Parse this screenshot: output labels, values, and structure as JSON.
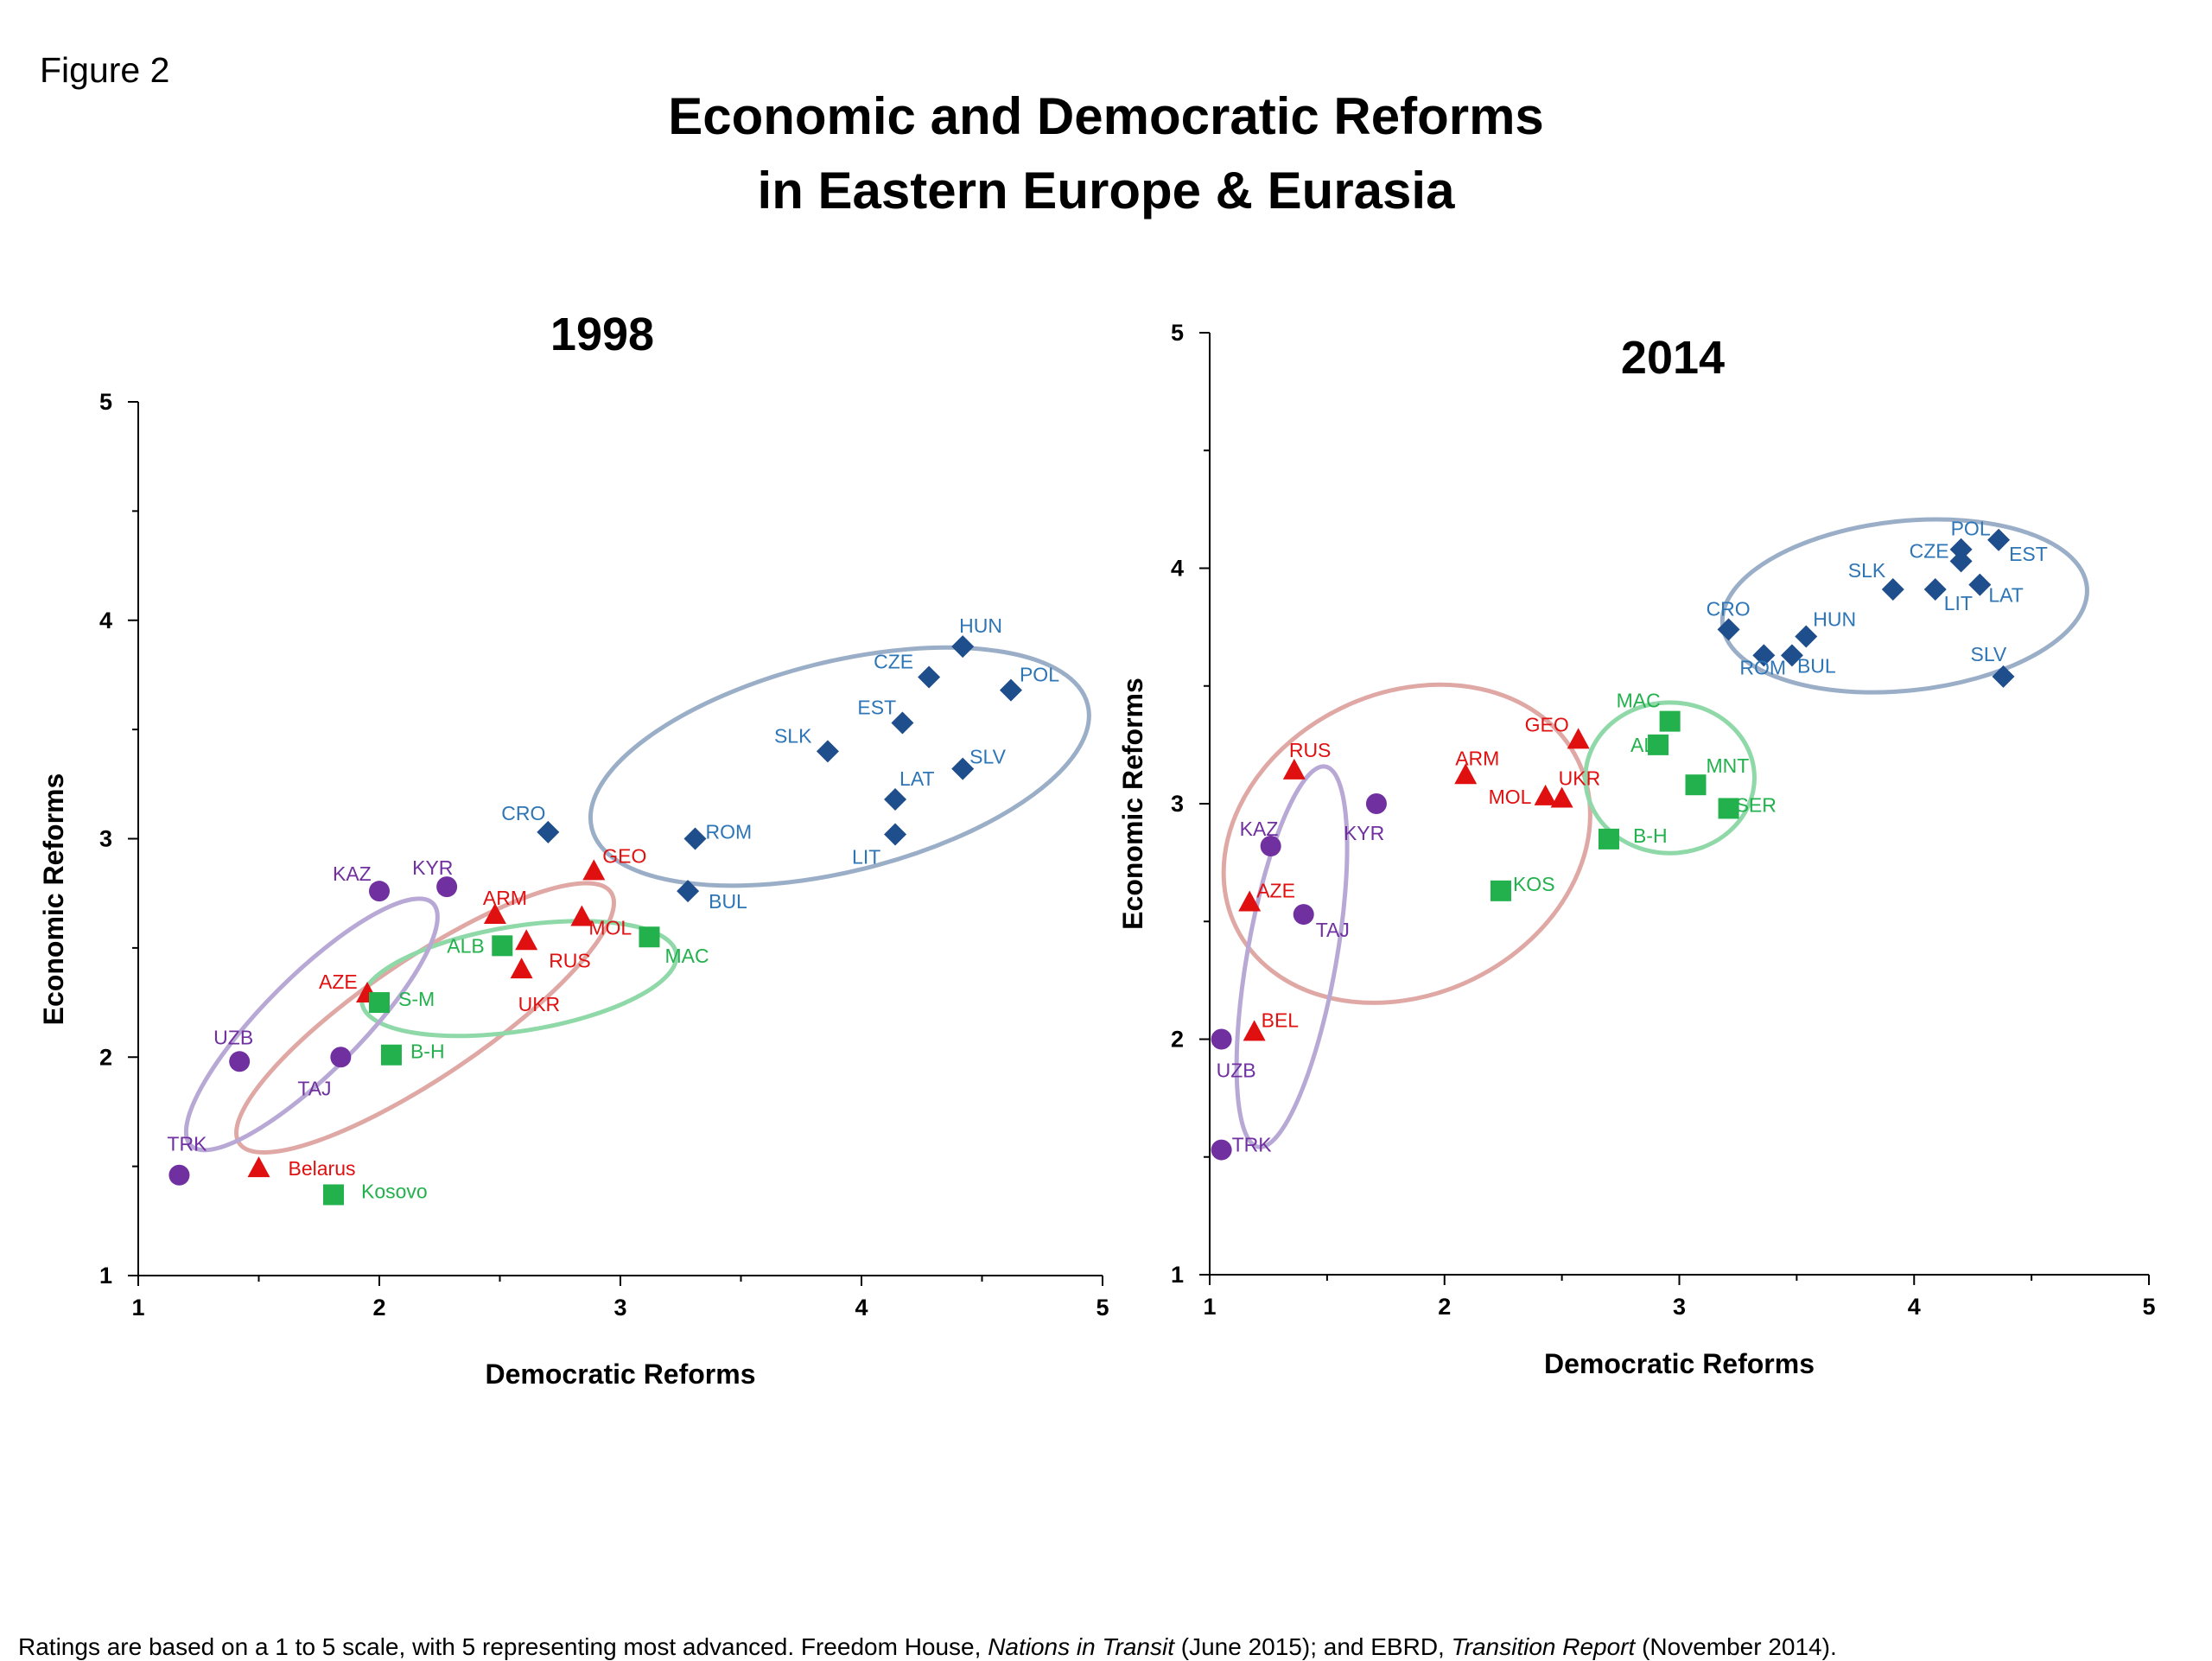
{
  "figure_label": "Figure 2",
  "title_line1": "Economic and Democratic Reforms",
  "title_line2": "in Eastern Europe & Eurasia",
  "footnote": {
    "part1": "Ratings are based on a 1 to 5 scale, with 5 representing most advanced.  Freedom House, ",
    "source1": "Nations in Transit",
    "part2": " (June 2015); and EBRD, ",
    "source2": "Transition Report",
    "part3": " (November 2014)."
  },
  "colors": {
    "blue_group": "#1f4e8c",
    "blue_label": "#2e75b6",
    "red_group": "#e01010",
    "green_group": "#22b14c",
    "purple_group": "#7030a0",
    "ellipse_blue": "#9aaec8",
    "ellipse_red": "#e0a8a4",
    "ellipse_green": "#8fd8a8",
    "ellipse_purple": "#b8a8d6"
  },
  "chart_data": [
    {
      "type": "scatter",
      "title": "1998",
      "xlabel": "Democratic Reforms",
      "ylabel": "Economic Reforms",
      "xlim": [
        1,
        5
      ],
      "ylim": [
        1,
        5
      ],
      "xticks": [
        "1",
        "2",
        "3",
        "4",
        "5"
      ],
      "yticks": [
        "1",
        "2",
        "3",
        "4",
        "5"
      ],
      "series": [
        {
          "group": "blue",
          "marker": "diamond",
          "points": [
            {
              "label": "HUN",
              "x": 4.42,
              "y": 3.88
            },
            {
              "label": "CZE",
              "x": 4.28,
              "y": 3.74
            },
            {
              "label": "POL",
              "x": 4.62,
              "y": 3.68
            },
            {
              "label": "EST",
              "x": 4.17,
              "y": 3.53
            },
            {
              "label": "SLK",
              "x": 3.86,
              "y": 3.4
            },
            {
              "label": "SLV",
              "x": 4.42,
              "y": 3.32
            },
            {
              "label": "LAT",
              "x": 4.14,
              "y": 3.18
            },
            {
              "label": "LIT",
              "x": 4.14,
              "y": 3.02
            },
            {
              "label": "CRO",
              "x": 2.7,
              "y": 3.03
            },
            {
              "label": "ROM",
              "x": 3.31,
              "y": 3.0
            },
            {
              "label": "BUL",
              "x": 3.28,
              "y": 2.76
            }
          ]
        },
        {
          "group": "red",
          "marker": "triangle",
          "points": [
            {
              "label": "GEO",
              "x": 2.89,
              "y": 2.85
            },
            {
              "label": "ARM",
              "x": 2.48,
              "y": 2.65
            },
            {
              "label": "MOL",
              "x": 2.84,
              "y": 2.64
            },
            {
              "label": "RUS",
              "x": 2.61,
              "y": 2.53
            },
            {
              "label": "UKR",
              "x": 2.59,
              "y": 2.4
            },
            {
              "label": "AZE",
              "x": 1.95,
              "y": 2.29
            },
            {
              "label": "Belarus",
              "x": 1.5,
              "y": 1.49
            }
          ]
        },
        {
          "group": "green",
          "marker": "square",
          "points": [
            {
              "label": "ALB",
              "x": 2.51,
              "y": 2.51
            },
            {
              "label": "MAC",
              "x": 3.12,
              "y": 2.55
            },
            {
              "label": "S-M",
              "x": 2.0,
              "y": 2.25
            },
            {
              "label": "B-H",
              "x": 2.05,
              "y": 2.01
            },
            {
              "label": "Kosovo",
              "x": 1.81,
              "y": 1.37
            }
          ]
        },
        {
          "group": "purple",
          "marker": "circle",
          "points": [
            {
              "label": "KAZ",
              "x": 2.0,
              "y": 2.76
            },
            {
              "label": "KYR",
              "x": 2.28,
              "y": 2.78
            },
            {
              "label": "UZB",
              "x": 1.42,
              "y": 1.98
            },
            {
              "label": "TAJ",
              "x": 1.84,
              "y": 2.0
            },
            {
              "label": "TRK",
              "x": 1.17,
              "y": 1.46
            }
          ]
        }
      ]
    },
    {
      "type": "scatter",
      "title": "2014",
      "xlabel": "Democratic Reforms",
      "ylabel": "Economic Reforms",
      "xlim": [
        1,
        5
      ],
      "ylim": [
        1,
        5
      ],
      "xticks": [
        "1",
        "2",
        "3",
        "4",
        "5"
      ],
      "yticks": [
        "1",
        "2",
        "3",
        "4",
        "5"
      ],
      "series": [
        {
          "group": "blue",
          "marker": "diamond",
          "points": [
            {
              "label": "POL",
              "x": 4.2,
              "y": 4.08
            },
            {
              "label": "EST",
              "x": 4.36,
              "y": 4.12
            },
            {
              "label": "CZE",
              "x": 4.2,
              "y": 4.03
            },
            {
              "label": "SLK",
              "x": 3.91,
              "y": 3.91
            },
            {
              "label": "LIT",
              "x": 4.09,
              "y": 3.91
            },
            {
              "label": "LAT",
              "x": 4.28,
              "y": 3.93
            },
            {
              "label": "CRO",
              "x": 3.21,
              "y": 3.74
            },
            {
              "label": "HUN",
              "x": 3.54,
              "y": 3.71
            },
            {
              "label": "ROM",
              "x": 3.36,
              "y": 3.63
            },
            {
              "label": "BUL",
              "x": 3.48,
              "y": 3.63
            },
            {
              "label": "SLV",
              "x": 4.38,
              "y": 3.54
            }
          ]
        },
        {
          "group": "red",
          "marker": "triangle",
          "points": [
            {
              "label": "RUS",
              "x": 1.36,
              "y": 3.14
            },
            {
              "label": "ARM",
              "x": 2.09,
              "y": 3.12
            },
            {
              "label": "GEO",
              "x": 2.57,
              "y": 3.27
            },
            {
              "label": "UKR",
              "x": 2.5,
              "y": 3.02
            },
            {
              "label": "MOL",
              "x": 2.43,
              "y": 3.03
            },
            {
              "label": "AZE",
              "x": 1.17,
              "y": 2.58
            },
            {
              "label": "BEL",
              "x": 1.19,
              "y": 2.03
            }
          ]
        },
        {
          "group": "green",
          "marker": "square",
          "points": [
            {
              "label": "MAC",
              "x": 2.96,
              "y": 3.35
            },
            {
              "label": "ALB",
              "x": 2.91,
              "y": 3.25
            },
            {
              "label": "MNT",
              "x": 3.07,
              "y": 3.08
            },
            {
              "label": "SER",
              "x": 3.21,
              "y": 2.98
            },
            {
              "label": "B-H",
              "x": 2.7,
              "y": 2.85
            },
            {
              "label": "KOS",
              "x": 2.24,
              "y": 2.63
            }
          ]
        },
        {
          "group": "purple",
          "marker": "circle",
          "points": [
            {
              "label": "KAZ",
              "x": 1.26,
              "y": 2.82
            },
            {
              "label": "KYR",
              "x": 1.71,
              "y": 3.0
            },
            {
              "label": "TAJ",
              "x": 1.4,
              "y": 2.53
            },
            {
              "label": "UZB",
              "x": 1.05,
              "y": 2.0
            },
            {
              "label": "TRK",
              "x": 1.05,
              "y": 1.53
            }
          ]
        }
      ]
    }
  ]
}
